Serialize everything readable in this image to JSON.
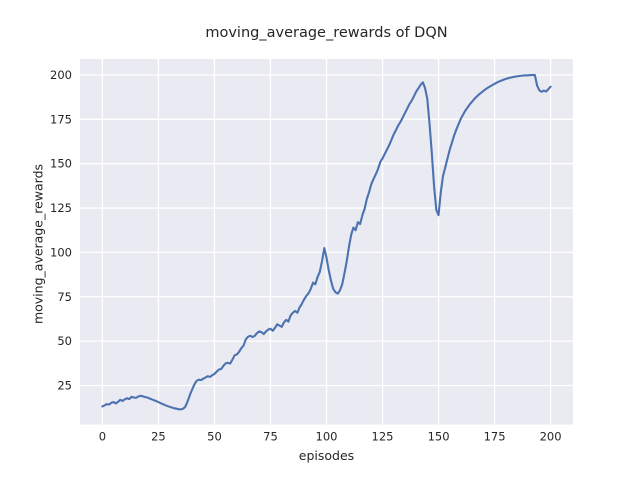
{
  "chart_data": {
    "type": "line",
    "title": "moving_average_rewards of DQN",
    "xlabel": "episodes",
    "ylabel": "moving_average_rewards",
    "x_ticks": [
      0,
      25,
      50,
      75,
      100,
      125,
      150,
      175,
      200
    ],
    "y_ticks": [
      25,
      50,
      75,
      100,
      125,
      150,
      175,
      200
    ],
    "xlim": [
      -10,
      210
    ],
    "ylim": [
      3,
      209
    ],
    "grid": true,
    "legend": "none",
    "colors": {
      "figure_bg": "#ffffff",
      "axes_bg": "#eaeaf2",
      "grid": "#ffffff",
      "line": "#4c72b0",
      "text": "#262626"
    },
    "series": [
      {
        "name": "moving_average_rewards",
        "color": "#4c72b0",
        "x": [
          0,
          1,
          2,
          3,
          4,
          5,
          6,
          7,
          8,
          9,
          10,
          11,
          12,
          13,
          14,
          15,
          16,
          17,
          18,
          19,
          20,
          22,
          24,
          26,
          28,
          30,
          32,
          34,
          35,
          36,
          37,
          38,
          39,
          40,
          41,
          42,
          43,
          44,
          45,
          46,
          47,
          48,
          49,
          50,
          51,
          52,
          53,
          54,
          55,
          56,
          57,
          58,
          59,
          60,
          61,
          62,
          63,
          64,
          65,
          66,
          67,
          68,
          69,
          70,
          71,
          72,
          73,
          74,
          75,
          76,
          77,
          78,
          79,
          80,
          81,
          82,
          83,
          84,
          85,
          86,
          87,
          88,
          89,
          90,
          91,
          92,
          93,
          94,
          95,
          96,
          97,
          98,
          99,
          100,
          101,
          102,
          103,
          104,
          105,
          106,
          107,
          108,
          109,
          110,
          111,
          112,
          113,
          114,
          115,
          116,
          117,
          118,
          119,
          120,
          121,
          122,
          123,
          124,
          125,
          126,
          127,
          128,
          129,
          130,
          131,
          132,
          133,
          134,
          135,
          136,
          137,
          138,
          139,
          140,
          141,
          142,
          143,
          144,
          145,
          146,
          147,
          148,
          149,
          150,
          151,
          152,
          153,
          154,
          155,
          156,
          157,
          158,
          159,
          160,
          162,
          164,
          166,
          168,
          170,
          172,
          174,
          176,
          178,
          180,
          182,
          184,
          186,
          188,
          190,
          191,
          192,
          193,
          194,
          195,
          196,
          197,
          198,
          199,
          200
        ],
        "y": [
          13.2,
          13.8,
          14.5,
          14.2,
          15.3,
          15.6,
          14.9,
          15.8,
          16.9,
          16.3,
          17.2,
          17.8,
          17.3,
          18.6,
          18.2,
          18.0,
          18.8,
          19.2,
          18.9,
          18.5,
          18.2,
          17.2,
          16.2,
          15.0,
          13.9,
          13.0,
          12.2,
          11.6,
          11.5,
          11.9,
          13.0,
          16.0,
          19.5,
          22.5,
          25.5,
          27.5,
          28.3,
          28.0,
          28.8,
          29.5,
          30.2,
          29.8,
          30.8,
          31.5,
          32.8,
          34.0,
          34.3,
          36.0,
          37.5,
          37.8,
          37.3,
          39.5,
          42.0,
          42.5,
          44.0,
          46.0,
          47.5,
          51.0,
          52.5,
          53.0,
          52.3,
          53.0,
          54.5,
          55.5,
          55.0,
          54.0,
          55.5,
          56.5,
          57.0,
          55.8,
          57.5,
          59.5,
          58.8,
          58.0,
          60.5,
          62.0,
          61.0,
          64.5,
          66.0,
          67.0,
          66.0,
          69.0,
          71.0,
          73.5,
          75.5,
          77.0,
          79.5,
          83.0,
          82.0,
          86.0,
          89.0,
          95.0,
          102.5,
          97.0,
          90.0,
          84.0,
          79.5,
          77.5,
          76.8,
          78.5,
          82.0,
          88.0,
          95.0,
          103.0,
          110.0,
          114.0,
          112.5,
          117.0,
          116.0,
          121.0,
          124.5,
          130.0,
          134.0,
          138.5,
          141.5,
          144.0,
          147.0,
          151.0,
          153.0,
          155.5,
          158.0,
          160.5,
          163.5,
          166.5,
          169.0,
          171.5,
          173.5,
          176.0,
          178.5,
          181.0,
          183.5,
          185.5,
          188.0,
          190.5,
          192.5,
          194.5,
          195.8,
          192.5,
          186.5,
          172.0,
          156.0,
          137.0,
          124.0,
          121.0,
          134.0,
          143.0,
          148.0,
          153.0,
          158.0,
          162.0,
          166.0,
          169.5,
          172.5,
          175.5,
          180.0,
          183.5,
          186.5,
          189.0,
          191.0,
          192.8,
          194.3,
          195.7,
          196.8,
          197.8,
          198.5,
          199.0,
          199.4,
          199.7,
          199.8,
          199.9,
          199.9,
          199.9,
          194.0,
          191.3,
          190.5,
          191.2,
          190.6,
          192.0,
          193.4
        ]
      }
    ]
  }
}
